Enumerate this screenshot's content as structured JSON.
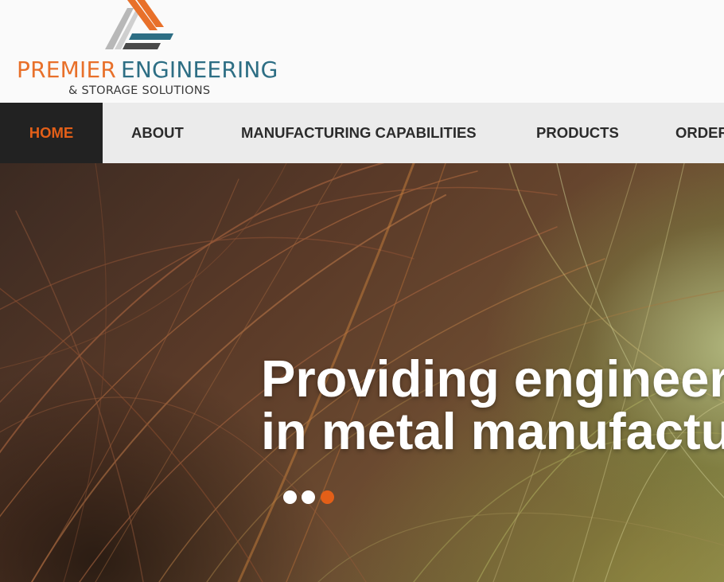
{
  "brand": {
    "name_part1": "PREMIER",
    "name_part2": "ENGINEERING",
    "subtitle": "& STORAGE SOLUTIONS",
    "colors": {
      "orange": "#e8702a",
      "teal": "#2d6e84",
      "grey": "#b8b8b8"
    }
  },
  "nav": {
    "items": [
      {
        "label": "HOME",
        "active": true
      },
      {
        "label": "ABOUT",
        "active": false
      },
      {
        "label": "MANUFACTURING CAPABILITIES",
        "active": false
      },
      {
        "label": "PRODUCTS",
        "active": false
      },
      {
        "label": "ORDER",
        "active": false
      }
    ],
    "active_color": "#e35f18",
    "active_bg": "#222222"
  },
  "hero": {
    "headline_line1": "Providing engineering",
    "headline_line2": "in metal manufactur",
    "slider": {
      "count": 3,
      "active_index": 2
    }
  }
}
